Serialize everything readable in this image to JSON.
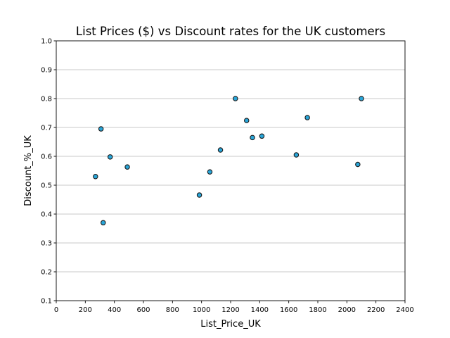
{
  "chart_data": {
    "type": "scatter",
    "title": "List Prices ($) vs Discount rates for the UK customers",
    "xlabel": "List_Price_UK",
    "ylabel": "Discount_%_UK",
    "xlim": [
      0,
      2400
    ],
    "ylim": [
      0.1,
      1.0
    ],
    "xticks": [
      "0",
      "200",
      "400",
      "600",
      "800",
      "1000",
      "1200",
      "1400",
      "1600",
      "1800",
      "2000",
      "2200",
      "2400"
    ],
    "yticks": [
      "0.1",
      "0.2",
      "0.3",
      "0.4",
      "0.5",
      "0.6",
      "0.7",
      "0.8",
      "0.9",
      "1.0"
    ],
    "grid": "horizontal",
    "marker_color": "#29a6d9",
    "points": [
      {
        "x": 270,
        "y": 0.53
      },
      {
        "x": 308,
        "y": 0.695
      },
      {
        "x": 323,
        "y": 0.37
      },
      {
        "x": 371,
        "y": 0.598
      },
      {
        "x": 489,
        "y": 0.563
      },
      {
        "x": 985,
        "y": 0.466
      },
      {
        "x": 1057,
        "y": 0.546
      },
      {
        "x": 1130,
        "y": 0.622
      },
      {
        "x": 1233,
        "y": 0.8
      },
      {
        "x": 1310,
        "y": 0.724
      },
      {
        "x": 1350,
        "y": 0.665
      },
      {
        "x": 1415,
        "y": 0.67
      },
      {
        "x": 1652,
        "y": 0.605
      },
      {
        "x": 1728,
        "y": 0.734
      },
      {
        "x": 2075,
        "y": 0.572
      },
      {
        "x": 2100,
        "y": 0.8
      }
    ]
  }
}
